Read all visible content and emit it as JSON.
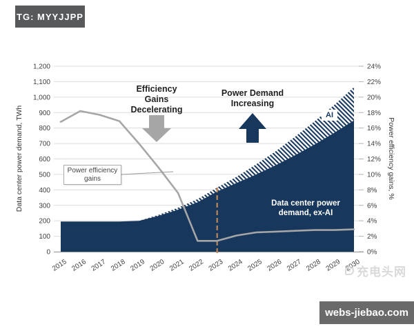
{
  "badge": {
    "label": "TG: MYYJJPP"
  },
  "colors": {
    "navy": "#17375d",
    "gray_line": "#a6a6a6",
    "gridline": "#dcdcdc",
    "dashed_vline": "#bf8756",
    "badge_bg": "#58595b",
    "watermark_bg": "#6a6a6a",
    "text_dark": "#1f1f1f",
    "axis_text": "#3f3f3f"
  },
  "chart_data": {
    "type": "area",
    "title": "",
    "x": [
      2015,
      2016,
      2017,
      2018,
      2019,
      2020,
      2021,
      2022,
      2023,
      2024,
      2025,
      2026,
      2027,
      2028,
      2029,
      2030
    ],
    "x_tick_labels": [
      "2015",
      "2016",
      "2017",
      "2018",
      "2019",
      "2020",
      "2021",
      "2022",
      "2023",
      "2024",
      "2025",
      "2026",
      "2027",
      "2028",
      "2029",
      "2030"
    ],
    "ylabel_left": "Data center power demand, TWh",
    "ylabel_right": "Power efficiency gains, %",
    "ylim_left": [
      0,
      1200
    ],
    "ylim_right": [
      0,
      24
    ],
    "grid": "horizontal",
    "legend_position": "none",
    "left_tick_labels": [
      "0",
      "100",
      "200",
      "300",
      "400",
      "500",
      "600",
      "700",
      "800",
      "900",
      "1,000",
      "1,100",
      "1,200"
    ],
    "right_tick_labels": [
      "0%",
      "2%",
      "4%",
      "6%",
      "8%",
      "10%",
      "12%",
      "14%",
      "16%",
      "18%",
      "20%",
      "22%",
      "24%"
    ],
    "series": [
      {
        "name": "Data center power demand, ex-AI",
        "type": "area",
        "axis": "left",
        "style": "solid-navy",
        "values": [
          195,
          195,
          195,
          195,
          200,
          232,
          272,
          320,
          390,
          445,
          500,
          560,
          625,
          695,
          770,
          850
        ]
      },
      {
        "name": "AI",
        "type": "area",
        "axis": "left",
        "style": "hatched",
        "note": "stacked on top of ex-AI; values are total demand including AI",
        "total_values": [
          195,
          195,
          195,
          195,
          200,
          238,
          284,
          340,
          415,
          485,
          565,
          650,
          745,
          845,
          950,
          1065
        ]
      },
      {
        "name": "Power efficiency gains",
        "type": "line",
        "axis": "right",
        "style": "gray-line",
        "values_pct": [
          16.8,
          18.2,
          17.7,
          16.9,
          14.0,
          10.9,
          7.6,
          1.4,
          1.4,
          2.1,
          2.5,
          2.6,
          2.7,
          2.8,
          2.8,
          2.9
        ]
      }
    ],
    "vline": {
      "x": 2023,
      "style": "dashed"
    },
    "annotations": {
      "efficiency": "Efficiency\nGains\nDecelerating",
      "power_demand": "Power Demand\nIncreasing",
      "callout": "Power efficiency\ngains",
      "ai_label": "AI",
      "area_label": "Data center power\ndemand, ex-AI"
    }
  },
  "watermark": {
    "cn": "充电头网",
    "site": "webs-jiebao.com"
  }
}
